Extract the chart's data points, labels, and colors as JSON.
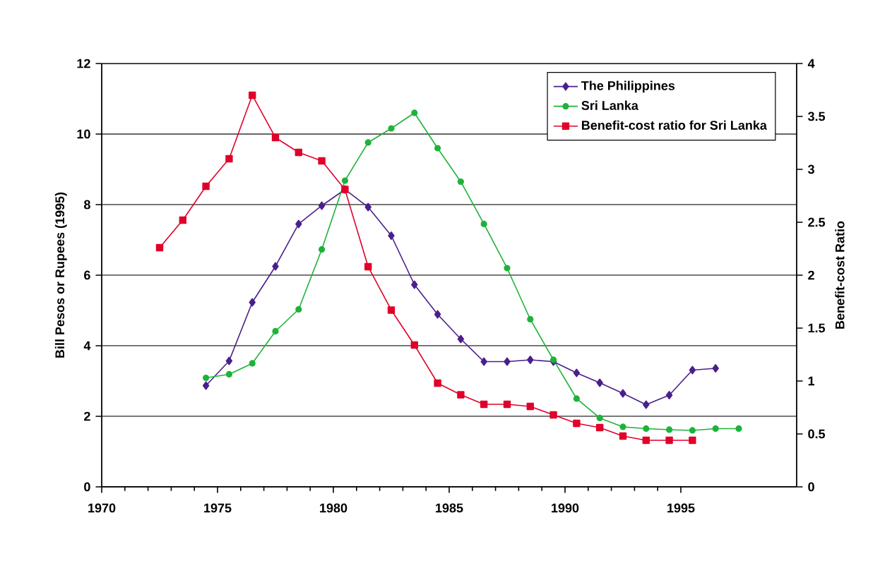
{
  "chart_data": {
    "type": "line",
    "ylabel": "Bill Pesos or Rupees (1995)",
    "y2label": "Benefit-cost Ratio",
    "xlim": [
      1970,
      2000
    ],
    "xticks": [
      1970,
      1975,
      1980,
      1985,
      1990,
      1995
    ],
    "ylim": [
      0,
      12
    ],
    "yticks": [
      0,
      2,
      4,
      6,
      8,
      10,
      12
    ],
    "y2lim": [
      0,
      4
    ],
    "y2ticks": [
      0,
      0.5,
      1,
      1.5,
      2,
      2.5,
      3,
      3.5,
      4
    ],
    "grid": "y",
    "legend": "top right",
    "series": [
      {
        "name": "The Philippines",
        "color": "#4b1f8c",
        "marker": "diamond",
        "x": [
          1974.5,
          1975.5,
          1976.5,
          1977.5,
          1978.5,
          1979.5,
          1980.5,
          1981.5,
          1982.5,
          1983.5,
          1984.5,
          1985.5,
          1986.5,
          1987.5,
          1988.5,
          1989.5,
          1990.5,
          1991.5,
          1992.5,
          1993.5,
          1994.5,
          1995.5,
          1996.5
        ],
        "values": [
          2.87,
          3.57,
          5.23,
          6.25,
          7.45,
          7.97,
          8.43,
          7.93,
          7.12,
          5.73,
          4.89,
          4.19,
          3.55,
          3.55,
          3.6,
          3.55,
          3.23,
          2.95,
          2.65,
          2.33,
          2.6,
          3.31,
          3.36
        ]
      },
      {
        "name": "Sri Lanka",
        "color": "#1db33a",
        "marker": "circle",
        "x": [
          1974.5,
          1975.5,
          1976.5,
          1977.5,
          1978.5,
          1979.5,
          1980.5,
          1981.5,
          1982.5,
          1983.5,
          1984.5,
          1985.5,
          1986.5,
          1987.5,
          1988.5,
          1989.5,
          1990.5,
          1991.5,
          1992.5,
          1993.5,
          1994.5,
          1995.5,
          1996.5,
          1997.5
        ],
        "values": [
          3.09,
          3.19,
          3.5,
          4.41,
          5.03,
          6.73,
          8.68,
          9.76,
          10.16,
          10.6,
          9.6,
          8.65,
          7.45,
          6.2,
          4.75,
          3.6,
          2.5,
          1.95,
          1.7,
          1.65,
          1.62,
          1.6,
          1.65,
          1.65
        ]
      },
      {
        "name": "Benefit-cost ratio for Sri Lanka",
        "color": "#e0002a",
        "marker": "square",
        "axis": "y2",
        "x": [
          1972.5,
          1973.5,
          1974.5,
          1975.5,
          1976.5,
          1977.5,
          1978.5,
          1979.5,
          1980.5,
          1981.5,
          1982.5,
          1983.5,
          1984.5,
          1985.5,
          1986.5,
          1987.5,
          1988.5,
          1989.5,
          1990.5,
          1991.5,
          1992.5,
          1993.5,
          1994.5,
          1995.5
        ],
        "values": [
          2.26,
          2.52,
          2.84,
          3.1,
          3.7,
          3.3,
          3.16,
          3.08,
          2.81,
          2.08,
          1.67,
          1.34,
          0.98,
          0.87,
          0.78,
          0.78,
          0.76,
          0.68,
          0.6,
          0.56,
          0.48,
          0.44,
          0.44,
          0.44
        ]
      }
    ]
  }
}
